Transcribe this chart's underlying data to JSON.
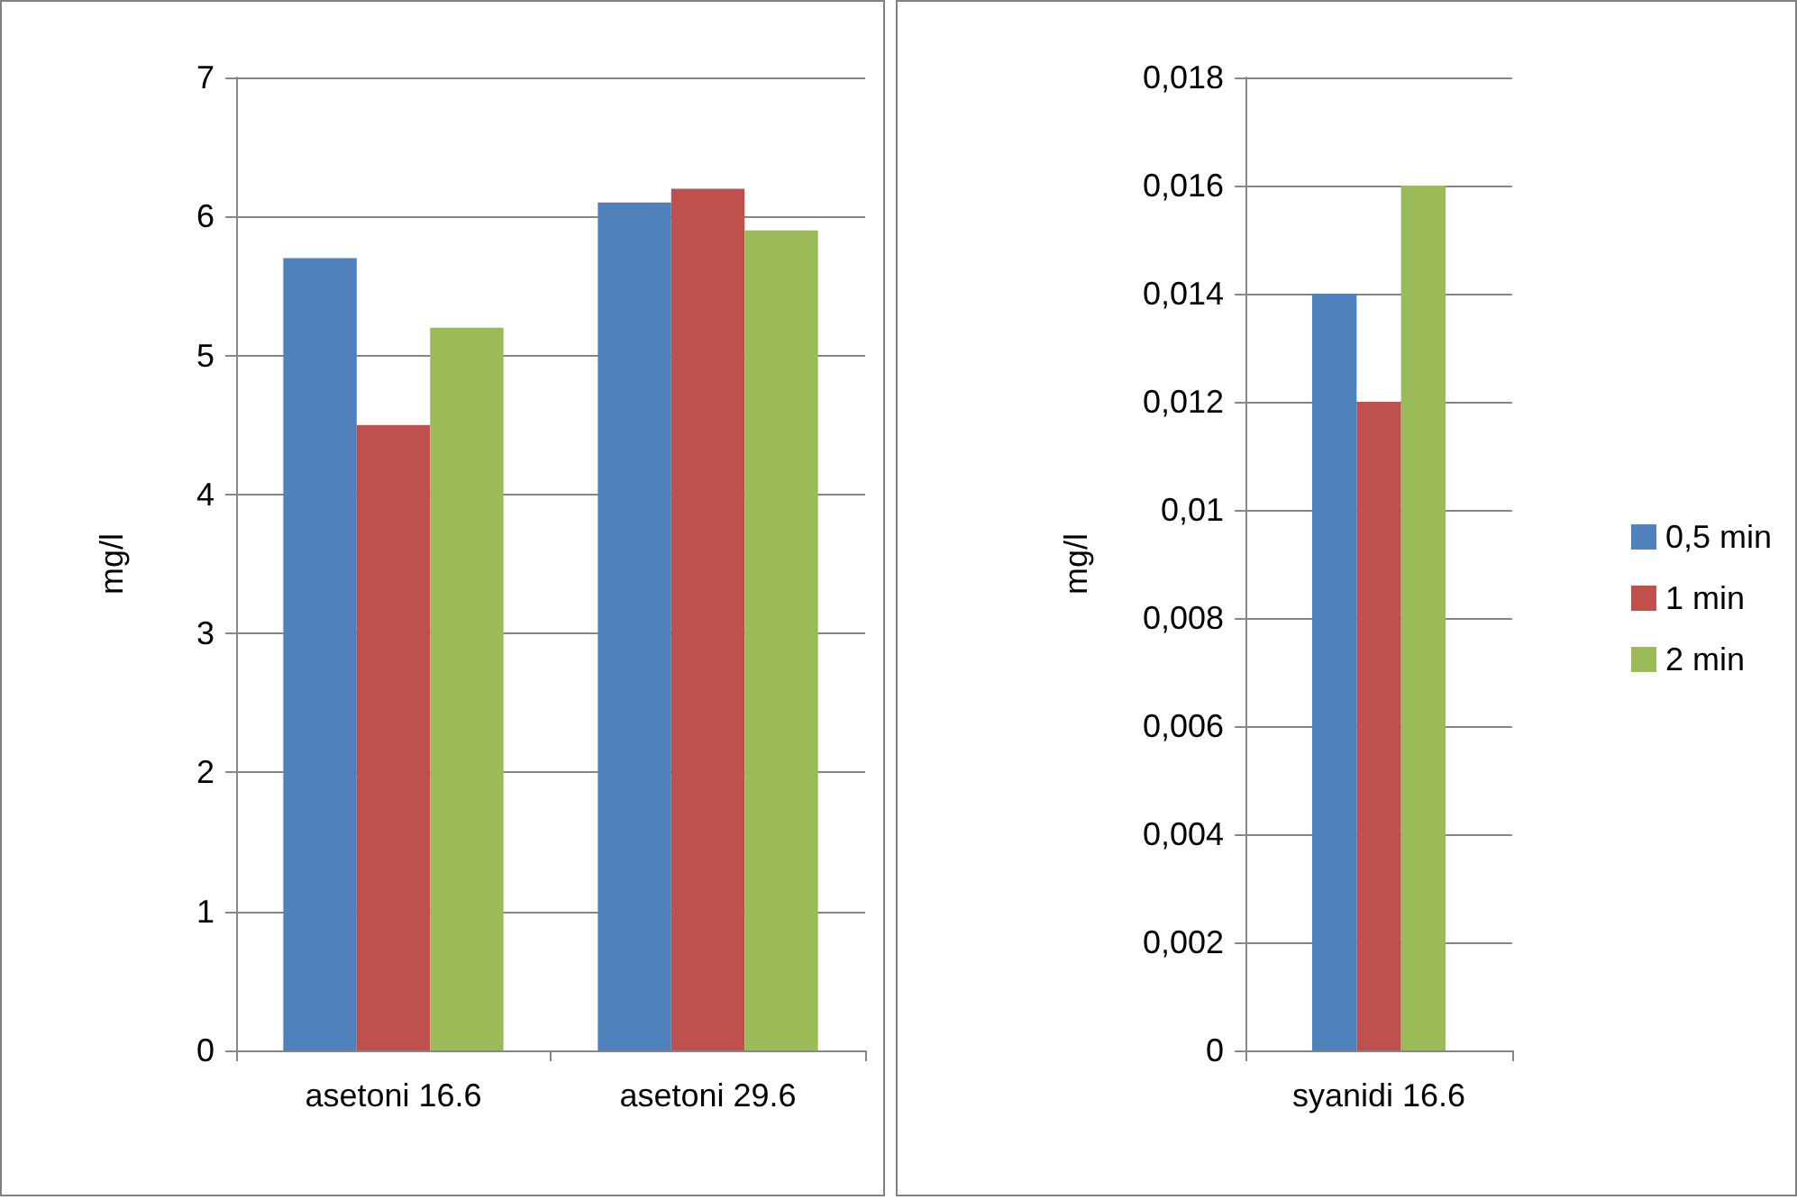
{
  "chart_data": [
    {
      "type": "bar",
      "categories": [
        "asetoni 16.6",
        "asetoni 29.6"
      ],
      "ylabel": "mg/l",
      "ylim": [
        0,
        7
      ],
      "yticks": [
        0,
        1,
        2,
        3,
        4,
        5,
        6,
        7
      ],
      "grid": "y",
      "legend": false,
      "series": [
        {
          "color": "#4f81bd",
          "values": [
            5.7,
            6.1
          ]
        },
        {
          "color": "#c0504d",
          "values": [
            4.5,
            6.2
          ]
        },
        {
          "color": "#9bbb59",
          "values": [
            5.2,
            5.9
          ]
        }
      ]
    },
    {
      "type": "bar",
      "categories": [
        "syanidi 16.6"
      ],
      "ylabel": "mg/l",
      "ylim": [
        0,
        0.018
      ],
      "yticks": [
        0,
        {
          "value": 0.002,
          "label": "0,002"
        },
        {
          "value": 0.004,
          "label": "0,004"
        },
        {
          "value": 0.006,
          "label": "0,006"
        },
        {
          "value": 0.008,
          "label": "0,008"
        },
        {
          "value": 0.01,
          "label": "0,01"
        },
        {
          "value": 0.012,
          "label": "0,012"
        },
        {
          "value": 0.014,
          "label": "0,014"
        },
        {
          "value": 0.016,
          "label": "0,016"
        },
        {
          "value": 0.018,
          "label": "0,018"
        }
      ],
      "grid": "y",
      "legend": "right",
      "series": [
        {
          "name": "0,5 min",
          "color": "#4f81bd",
          "values": [
            0.014
          ]
        },
        {
          "name": "1 min",
          "color": "#c0504d",
          "values": [
            0.012
          ]
        },
        {
          "name": "2 min",
          "color": "#9bbb59",
          "values": [
            0.016
          ]
        }
      ]
    }
  ]
}
